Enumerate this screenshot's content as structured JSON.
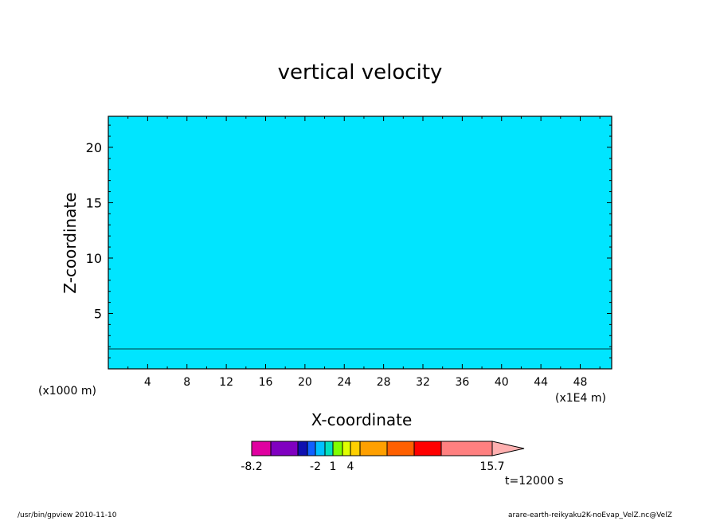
{
  "chart_data": {
    "type": "heatmap",
    "title": "vertical velocity",
    "xlabel": "X-coordinate",
    "ylabel": "Z-coordinate",
    "x_unit_label": "(x1000 m)",
    "x_scale_label": "(x1E4 m)",
    "x_ticks": [
      4,
      8,
      12,
      16,
      20,
      24,
      28,
      32,
      36,
      40,
      44,
      48
    ],
    "x_tick_labels": [
      "4",
      "8",
      "12",
      "16",
      "20",
      "24",
      "28",
      "32",
      "36",
      "40",
      "44",
      "48"
    ],
    "y_ticks": [
      5,
      10,
      15,
      20
    ],
    "y_tick_labels": [
      "5",
      "10",
      "15",
      "20"
    ],
    "xlim": [
      0,
      51.2
    ],
    "ylim": [
      0,
      22.8
    ],
    "colorbar": {
      "min_label": "-8.2",
      "max_label": "15.7",
      "tick_labels": [
        "-2",
        "1",
        "4"
      ],
      "colors": [
        "#e000a0",
        "#8000c0",
        "#1010b0",
        "#1060ff",
        "#00c0ff",
        "#00e0c0",
        "#80ff00",
        "#e0ff00",
        "#ffd000",
        "#ffa000",
        "#ff6000",
        "#ff0000",
        "#ff8080",
        "#ffb0b0"
      ]
    },
    "dominant_colors": {
      "negative": "#00e5ff",
      "positive": "#00f000"
    }
  },
  "timestamp": "t=12000 s",
  "footer": {
    "left": "/usr/bin/gpview   2010-11-10",
    "right": "arare-earth-reikyaku2K-noEvap_VelZ.nc@VelZ"
  }
}
